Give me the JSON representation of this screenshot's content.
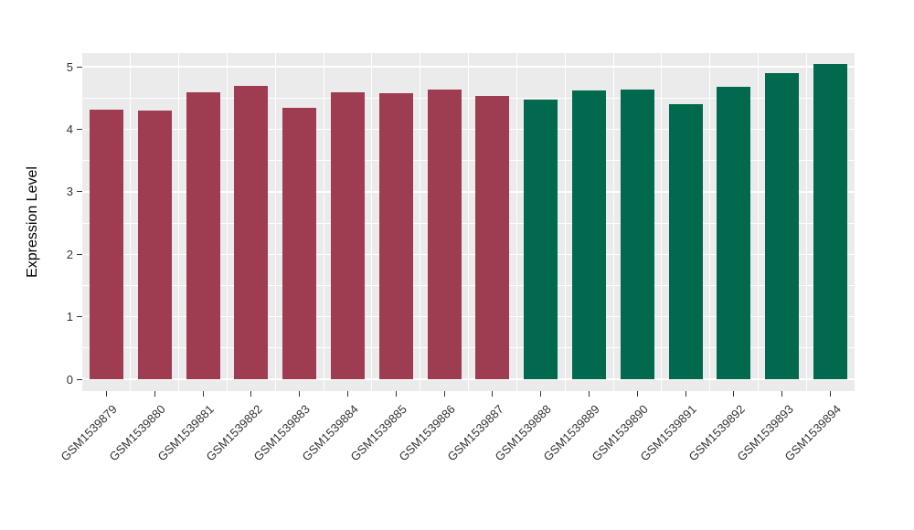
{
  "chart_data": {
    "type": "bar",
    "title": "",
    "xlabel": "",
    "ylabel": "Expression Level",
    "ylim": [
      0,
      5
    ],
    "yticks": [
      0,
      1,
      2,
      3,
      4,
      5
    ],
    "grid": true,
    "legend": "none",
    "panel_background": "#EBEBEB",
    "grid_color": "#FFFFFF",
    "text_color": "#333333",
    "categories": [
      "GSM1539879",
      "GSM1539880",
      "GSM1539881",
      "GSM1539882",
      "GSM1539883",
      "GSM1539884",
      "GSM1539885",
      "GSM1539886",
      "GSM1539887",
      "GSM1539888",
      "GSM1539889",
      "GSM1539890",
      "GSM1539891",
      "GSM1539892",
      "GSM1539893",
      "GSM1539894"
    ],
    "values": [
      4.31,
      4.3,
      4.59,
      4.7,
      4.34,
      4.59,
      4.58,
      4.64,
      4.53,
      4.47,
      4.62,
      4.64,
      4.4,
      4.68,
      4.9,
      5.05
    ],
    "colors": [
      "#9E3D51",
      "#9E3D51",
      "#9E3D51",
      "#9E3D51",
      "#9E3D51",
      "#9E3D51",
      "#9E3D51",
      "#9E3D51",
      "#9E3D51",
      "#016A4E",
      "#016A4E",
      "#016A4E",
      "#016A4E",
      "#016A4E",
      "#016A4E",
      "#016A4E"
    ],
    "group_colors": {
      "red_group": "#9E3D51",
      "green_group": "#016A4E"
    }
  }
}
